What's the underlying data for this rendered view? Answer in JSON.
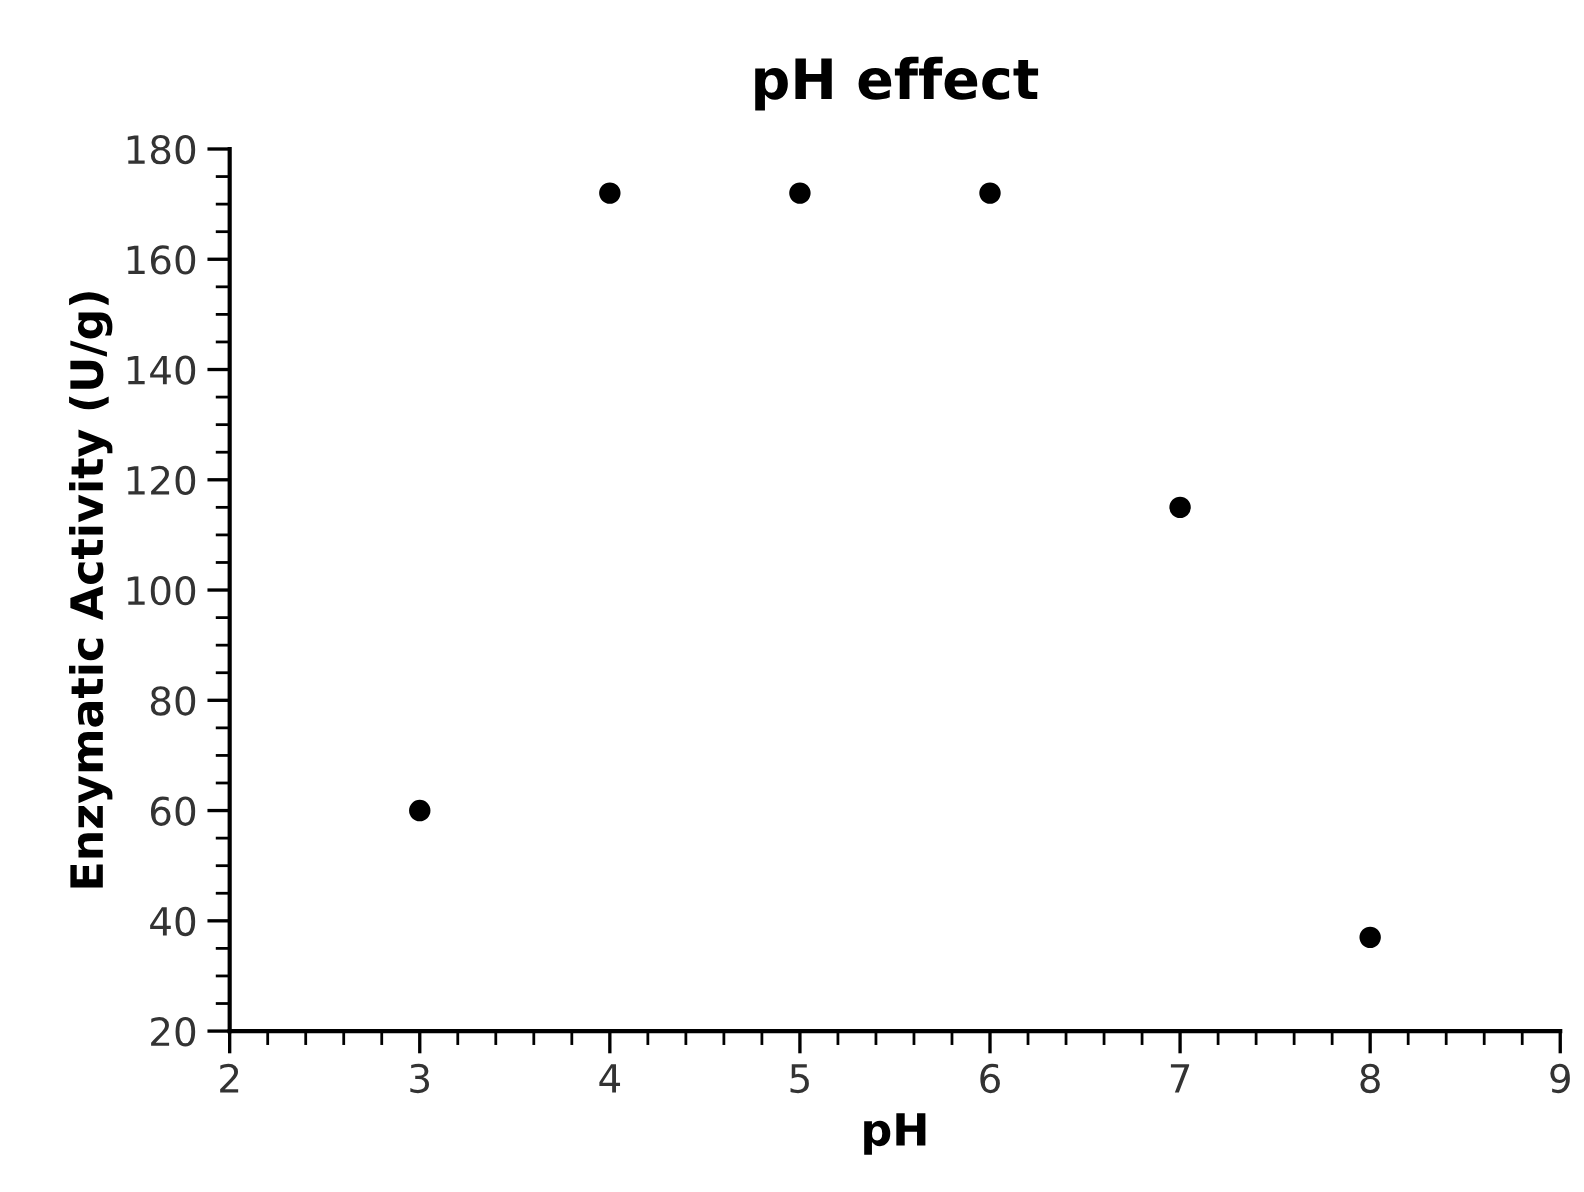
{
  "chart_data": {
    "type": "scatter",
    "title": "pH effect",
    "xlabel": "pH",
    "ylabel": "Enzymatic Activity (U/g)",
    "x": [
      3,
      4,
      5,
      6,
      7,
      8
    ],
    "values": [
      60,
      172,
      172,
      172,
      115,
      37
    ],
    "color": "#000000",
    "marker": "circle",
    "xlim": [
      2,
      9
    ],
    "xticks": [
      2,
      3,
      4,
      5,
      6,
      7,
      8,
      9
    ],
    "ylim": [
      20,
      180
    ],
    "yticks": [
      20,
      40,
      60,
      80,
      100,
      120,
      140,
      160,
      180
    ],
    "grid": false,
    "legend": false
  }
}
